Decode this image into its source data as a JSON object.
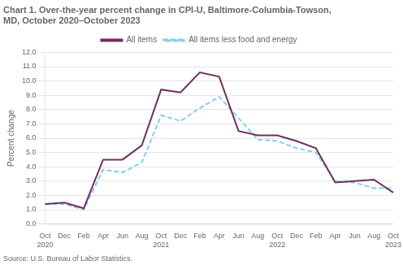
{
  "chart_data": {
    "type": "line",
    "title": "Chart 1. Over-the-year percent change in CPI-U, Baltimore-Columbia-Towson,\nMD, October 2020–October 2023",
    "ylabel": "Percent change",
    "source": "Source: U.S. Bureau of Labor Statistics.",
    "categories": [
      "Oct\n2020",
      "Dec",
      "Feb",
      "Apr",
      "Jun",
      "Aug",
      "Oct\n2021",
      "Dec",
      "Feb",
      "Apr",
      "Jun",
      "Aug",
      "Oct\n2022",
      "Dec",
      "Feb",
      "Apr",
      "Jun",
      "Aug",
      "Oct\n2023"
    ],
    "series": [
      {
        "name": "All items",
        "color": "#722F5B",
        "line_style": "solid",
        "values": [
          1.4,
          1.5,
          1.1,
          4.5,
          4.5,
          5.5,
          9.4,
          9.2,
          10.6,
          10.3,
          6.5,
          6.2,
          6.2,
          5.8,
          5.3,
          2.9,
          3.0,
          3.1,
          2.2
        ]
      },
      {
        "name": "All items less food and energy",
        "color": "#87CEEB",
        "line_style": "dashed",
        "values": [
          1.4,
          1.4,
          1.0,
          3.8,
          3.6,
          4.3,
          7.6,
          7.2,
          8.1,
          8.9,
          7.4,
          5.9,
          5.8,
          5.3,
          5.0,
          3.0,
          2.9,
          2.5,
          2.5
        ]
      }
    ],
    "ylim": [
      0.0,
      12.0
    ],
    "yticks": [
      {
        "value": 0,
        "label": "0.0"
      },
      {
        "value": 1,
        "label": "1.0"
      },
      {
        "value": 2,
        "label": "2.0"
      },
      {
        "value": 3,
        "label": "3.0"
      },
      {
        "value": 4,
        "label": "4.0"
      },
      {
        "value": 5,
        "label": "5.0"
      },
      {
        "value": 6,
        "label": "6.0"
      },
      {
        "value": 7,
        "label": "7.0"
      },
      {
        "value": 8,
        "label": "8.0"
      },
      {
        "value": 9,
        "label": "9.0"
      },
      {
        "value": 10,
        "label": "10.0"
      },
      {
        "value": 11,
        "label": "11.0"
      },
      {
        "value": 12,
        "label": "12.0"
      }
    ],
    "grid": true,
    "legend": "top"
  }
}
